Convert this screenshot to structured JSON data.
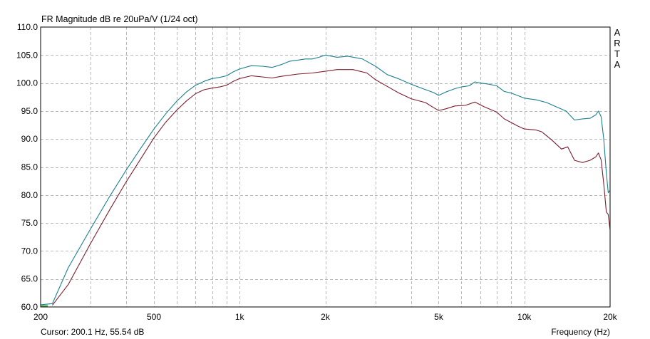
{
  "chart_data": {
    "type": "line",
    "title": "FR Magnitude dB re 20uPa/V (1/24 oct)",
    "xlabel": "Frequency (Hz)",
    "ylabel": "",
    "xscale": "log",
    "xlim": [
      200,
      20000
    ],
    "ylim": [
      60,
      110
    ],
    "grid": true,
    "x_ticks": [
      {
        "value": 200,
        "label": "200"
      },
      {
        "value": 500,
        "label": "500"
      },
      {
        "value": 1000,
        "label": "1k"
      },
      {
        "value": 2000,
        "label": "2k"
      },
      {
        "value": 5000,
        "label": "5k"
      },
      {
        "value": 10000,
        "label": "10k"
      },
      {
        "value": 20000,
        "label": "20k"
      }
    ],
    "x_minor_grid": [
      300,
      400,
      600,
      700,
      800,
      900,
      3000,
      4000,
      6000,
      7000,
      8000,
      9000
    ],
    "y_ticks": [
      "60.0",
      "65.0",
      "70.0",
      "75.0",
      "80.0",
      "85.0",
      "90.0",
      "95.0",
      "100.0",
      "105.0",
      "110.0"
    ],
    "series": [
      {
        "color": "#1b7f8f",
        "points": [
          [
            200,
            60.4
          ],
          [
            220,
            60.6
          ],
          [
            250,
            67.0
          ],
          [
            300,
            74.0
          ],
          [
            350,
            79.8
          ],
          [
            400,
            84.5
          ],
          [
            450,
            88.4
          ],
          [
            500,
            91.8
          ],
          [
            550,
            94.5
          ],
          [
            600,
            96.7
          ],
          [
            650,
            98.4
          ],
          [
            700,
            99.6
          ],
          [
            750,
            100.3
          ],
          [
            800,
            100.8
          ],
          [
            850,
            101.0
          ],
          [
            900,
            101.3
          ],
          [
            950,
            102.0
          ],
          [
            1000,
            102.5
          ],
          [
            1100,
            103.1
          ],
          [
            1200,
            103.0
          ],
          [
            1300,
            102.8
          ],
          [
            1400,
            103.3
          ],
          [
            1500,
            103.9
          ],
          [
            1600,
            104.1
          ],
          [
            1700,
            104.3
          ],
          [
            1800,
            104.3
          ],
          [
            1900,
            104.6
          ],
          [
            2000,
            105.0
          ],
          [
            2200,
            104.6
          ],
          [
            2400,
            104.8
          ],
          [
            2700,
            104.3
          ],
          [
            3000,
            103.0
          ],
          [
            3300,
            101.5
          ],
          [
            3600,
            100.8
          ],
          [
            4000,
            99.8
          ],
          [
            4400,
            99.0
          ],
          [
            4800,
            98.3
          ],
          [
            5000,
            97.8
          ],
          [
            5300,
            98.4
          ],
          [
            5700,
            99.0
          ],
          [
            6000,
            99.3
          ],
          [
            6400,
            99.5
          ],
          [
            6700,
            100.2
          ],
          [
            7000,
            100.0
          ],
          [
            7500,
            99.8
          ],
          [
            8000,
            99.5
          ],
          [
            8500,
            98.5
          ],
          [
            9000,
            98.2
          ],
          [
            10000,
            97.3
          ],
          [
            11000,
            97.0
          ],
          [
            12000,
            96.5
          ],
          [
            13000,
            95.7
          ],
          [
            14000,
            95.0
          ],
          [
            15000,
            93.4
          ],
          [
            16000,
            93.6
          ],
          [
            17000,
            93.7
          ],
          [
            17800,
            94.3
          ],
          [
            18200,
            95.0
          ],
          [
            18600,
            94.0
          ],
          [
            19000,
            90.0
          ],
          [
            19400,
            84.0
          ],
          [
            19700,
            80.4
          ],
          [
            20000,
            80.8
          ]
        ]
      },
      {
        "color": "#7a1f2e",
        "points": [
          [
            220,
            60.3
          ],
          [
            250,
            64.0
          ],
          [
            300,
            71.4
          ],
          [
            350,
            77.4
          ],
          [
            400,
            82.4
          ],
          [
            450,
            86.5
          ],
          [
            500,
            90.2
          ],
          [
            550,
            93.0
          ],
          [
            600,
            95.1
          ],
          [
            650,
            96.8
          ],
          [
            700,
            98.1
          ],
          [
            750,
            98.8
          ],
          [
            800,
            99.1
          ],
          [
            850,
            99.3
          ],
          [
            900,
            99.6
          ],
          [
            950,
            100.3
          ],
          [
            1000,
            100.8
          ],
          [
            1100,
            101.3
          ],
          [
            1200,
            101.1
          ],
          [
            1300,
            100.9
          ],
          [
            1400,
            101.2
          ],
          [
            1600,
            101.6
          ],
          [
            1800,
            101.8
          ],
          [
            2000,
            102.1
          ],
          [
            2200,
            102.4
          ],
          [
            2500,
            102.4
          ],
          [
            2800,
            101.8
          ],
          [
            3000,
            100.6
          ],
          [
            3300,
            99.4
          ],
          [
            3600,
            98.3
          ],
          [
            4000,
            97.2
          ],
          [
            4500,
            96.5
          ],
          [
            4800,
            95.6
          ],
          [
            5000,
            95.1
          ],
          [
            5300,
            95.4
          ],
          [
            5700,
            95.9
          ],
          [
            6200,
            96.0
          ],
          [
            6700,
            96.6
          ],
          [
            7200,
            95.8
          ],
          [
            8000,
            94.8
          ],
          [
            8500,
            93.6
          ],
          [
            9500,
            92.3
          ],
          [
            10000,
            91.8
          ],
          [
            11000,
            91.6
          ],
          [
            11500,
            91.3
          ],
          [
            12500,
            89.8
          ],
          [
            13500,
            88.2
          ],
          [
            14200,
            88.6
          ],
          [
            15000,
            86.2
          ],
          [
            16000,
            85.8
          ],
          [
            17000,
            86.2
          ],
          [
            17800,
            86.8
          ],
          [
            18200,
            87.5
          ],
          [
            18600,
            86.3
          ],
          [
            19000,
            82.0
          ],
          [
            19400,
            77.0
          ],
          [
            19700,
            76.5
          ],
          [
            20000,
            73.8
          ]
        ]
      }
    ]
  },
  "side_label": [
    "A",
    "R",
    "T",
    "A"
  ],
  "cursor_readout": "Cursor: 200.1 Hz, 55.54 dB",
  "reference_marker_color": "#4caf50"
}
